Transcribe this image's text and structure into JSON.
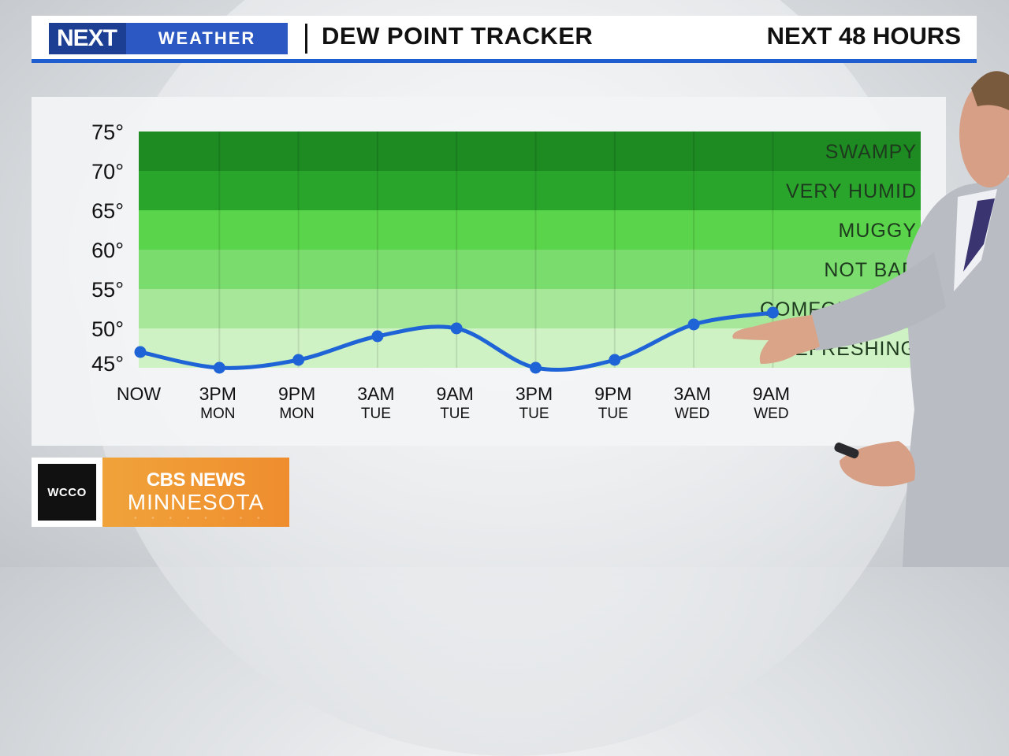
{
  "header": {
    "logo_next": "NEXT",
    "logo_weather": "WEATHER",
    "title": "DEW POINT TRACKER",
    "range": "NEXT 48 HOURS"
  },
  "brand": {
    "station": "WCCO",
    "network": "CBS NEWS",
    "region": "MINNESOTA"
  },
  "chart_data": {
    "type": "line",
    "title": "DEW POINT TRACKER",
    "x": [
      "NOW",
      "3PM MON",
      "9PM MON",
      "3AM TUE",
      "9AM TUE",
      "3PM TUE",
      "9PM TUE",
      "3AM WED",
      "9AM WED"
    ],
    "x_labels": [
      {
        "time": "NOW",
        "day": ""
      },
      {
        "time": "3PM",
        "day": "MON"
      },
      {
        "time": "9PM",
        "day": "MON"
      },
      {
        "time": "3AM",
        "day": "TUE"
      },
      {
        "time": "9AM",
        "day": "TUE"
      },
      {
        "time": "3PM",
        "day": "TUE"
      },
      {
        "time": "9PM",
        "day": "TUE"
      },
      {
        "time": "3AM",
        "day": "WED"
      },
      {
        "time": "9AM",
        "day": "WED"
      }
    ],
    "series": [
      {
        "values": [
          47,
          45,
          46,
          49,
          50,
          45,
          46,
          50.5,
          52
        ]
      }
    ],
    "ylim": [
      45,
      75
    ],
    "yticks": [
      75,
      70,
      65,
      60,
      55,
      50,
      45
    ],
    "ytick_suffix": "°",
    "line_color": "#1f64d6",
    "zones": [
      {
        "label": "SWAMPY",
        "from": 70,
        "to": 75,
        "color": "#1e8a22"
      },
      {
        "label": "VERY HUMID",
        "from": 65,
        "to": 70,
        "color": "#2aa52c"
      },
      {
        "label": "MUGGY",
        "from": 60,
        "to": 65,
        "color": "#5ad44a"
      },
      {
        "label": "NOT BAD",
        "from": 55,
        "to": 60,
        "color": "#7bdc6e"
      },
      {
        "label": "COMFORTABLE",
        "from": 50,
        "to": 55,
        "color": "#a6e79a"
      },
      {
        "label": "REFRESHING",
        "from": 45,
        "to": 50,
        "color": "#cff2c4"
      }
    ],
    "grid": true
  }
}
